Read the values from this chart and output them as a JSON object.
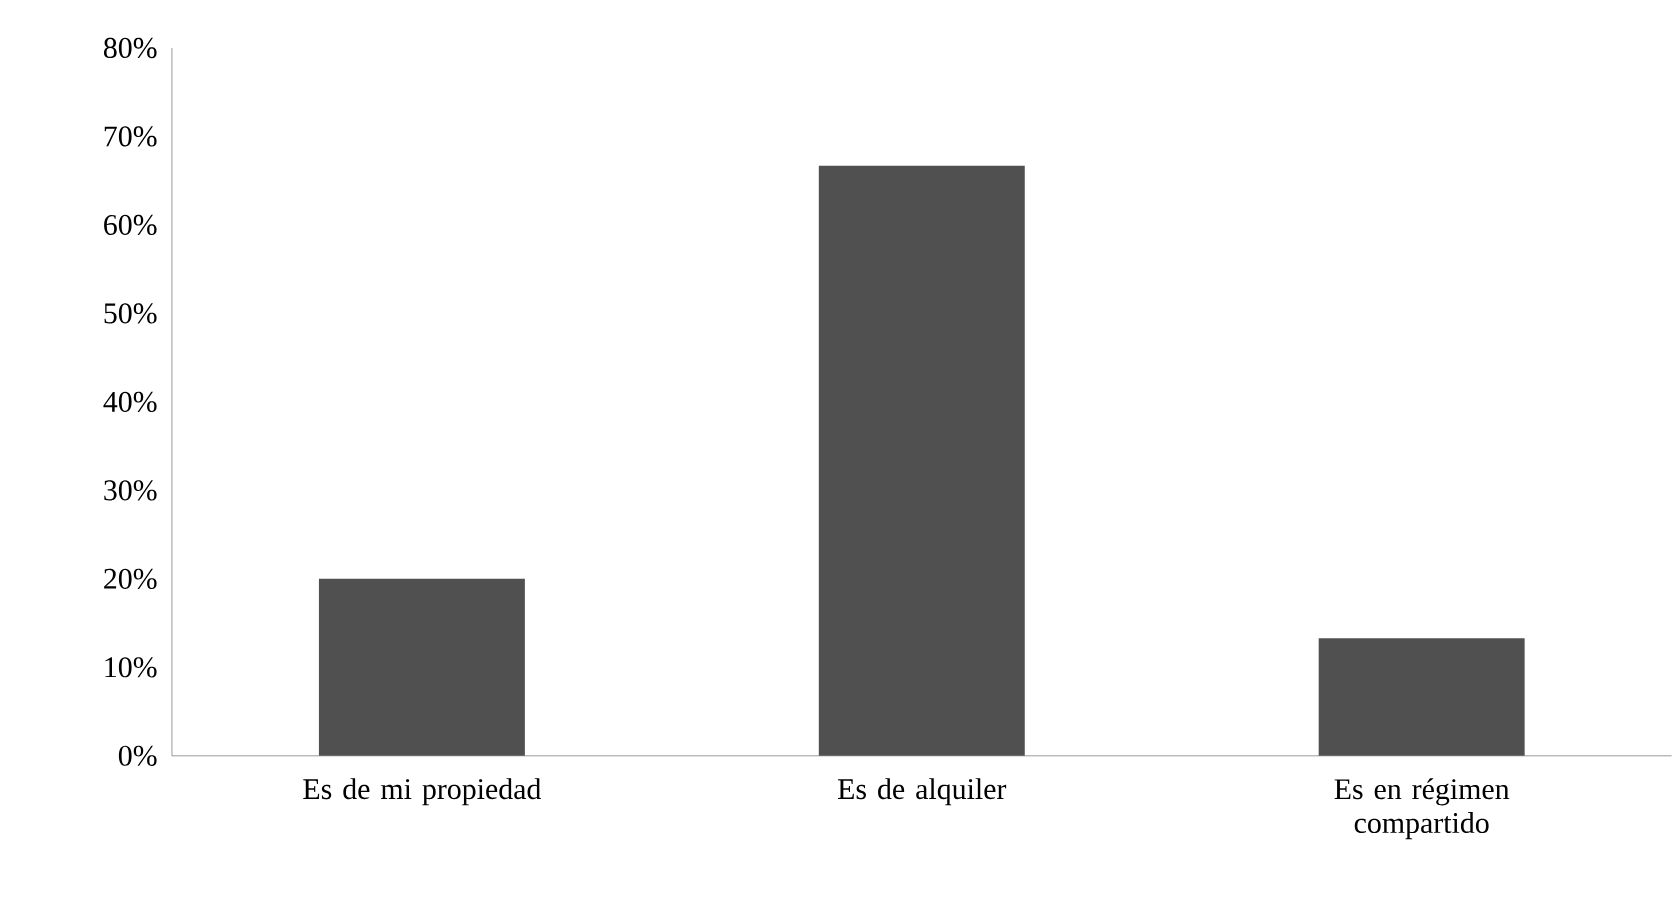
{
  "chart_data": {
    "type": "bar",
    "categories": [
      "Es de mi propiedad",
      "Es de alquiler",
      "Es en régimen compartido"
    ],
    "values": [
      20,
      66.7,
      13.3
    ],
    "color": "#505050",
    "ylim": [
      0,
      80
    ],
    "yticks": [
      {
        "value": 0,
        "label": "0%"
      },
      {
        "value": 10,
        "label": "10%"
      },
      {
        "value": 20,
        "label": "20%"
      },
      {
        "value": 30,
        "label": "30%"
      },
      {
        "value": 40,
        "label": "40%"
      },
      {
        "value": 50,
        "label": "50%"
      },
      {
        "value": 60,
        "label": "60%"
      },
      {
        "value": 70,
        "label": "70%"
      },
      {
        "value": 80,
        "label": "80%"
      }
    ]
  }
}
